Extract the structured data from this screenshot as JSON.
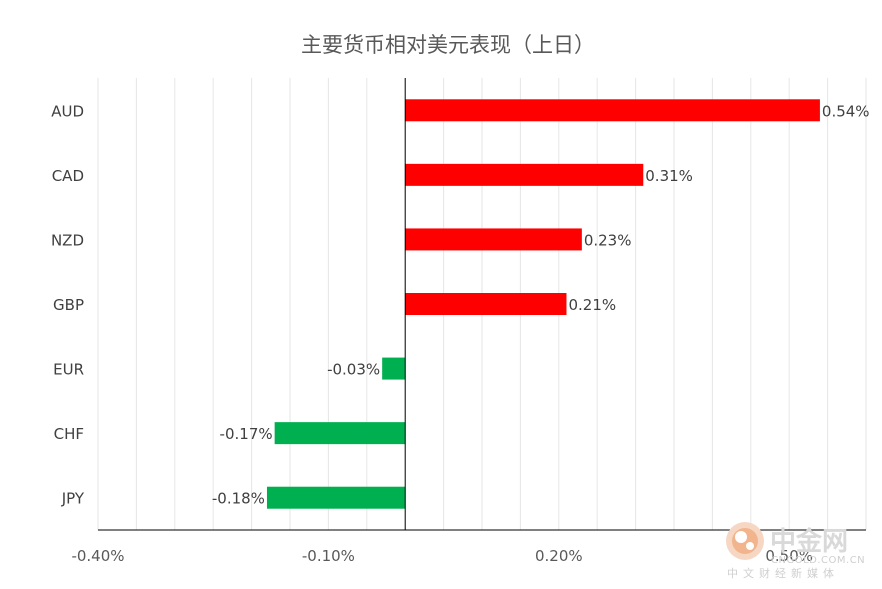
{
  "chart_data": {
    "type": "bar",
    "orientation": "horizontal",
    "title": "主要货币相对美元表现（上日）",
    "xlabel": "",
    "ylabel": "",
    "categories": [
      "AUD",
      "CAD",
      "NZD",
      "GBP",
      "EUR",
      "CHF",
      "JPY"
    ],
    "values": [
      0.54,
      0.31,
      0.23,
      0.21,
      -0.03,
      -0.17,
      -0.18
    ],
    "data_labels": [
      "0.54%",
      "0.31%",
      "0.23%",
      "0.21%",
      "-0.03%",
      "-0.17%",
      "-0.18%"
    ],
    "xlim": [
      -0.4,
      0.6
    ],
    "x_ticks": [
      -0.4,
      -0.1,
      0.2,
      0.5
    ],
    "x_tick_labels": [
      "-0.40%",
      "-0.10%",
      "0.20%",
      "0.50%"
    ],
    "grid": "vertical",
    "legend": "none",
    "colors": {
      "positive": "#ff0000",
      "negative": "#00b050",
      "axis": "#000000",
      "grid": "#e6e6e6"
    }
  },
  "watermark": {
    "logo_text": "中金网",
    "domain": "CNGOLD.COM.CN",
    "tagline": "中文财经新媒体"
  }
}
